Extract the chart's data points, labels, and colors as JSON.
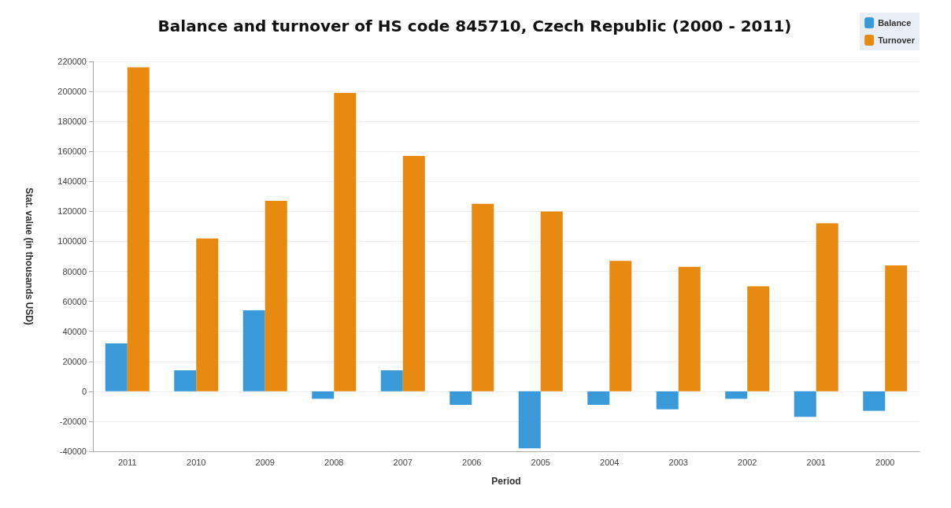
{
  "chart_data": {
    "type": "bar",
    "title": "Balance and turnover of HS code 845710, Czech Republic (2000 - 2011)",
    "xlabel": "Period",
    "ylabel": "Stat. value (in thousands USD)",
    "categories": [
      "2011",
      "2010",
      "2009",
      "2008",
      "2007",
      "2006",
      "2005",
      "2004",
      "2003",
      "2002",
      "2001",
      "2000"
    ],
    "series": [
      {
        "name": "Balance",
        "color": "#3a9ad9",
        "values": [
          32000,
          14000,
          54000,
          -5000,
          14000,
          -9000,
          -38000,
          -9000,
          -12000,
          -5000,
          -17000,
          -13000
        ]
      },
      {
        "name": "Turnover",
        "color": "#e88a10",
        "values": [
          216000,
          102000,
          127000,
          199000,
          157000,
          125000,
          120000,
          87000,
          83000,
          70000,
          112000,
          84000
        ]
      }
    ],
    "ylim": [
      -40000,
      220000
    ],
    "yticks": [
      -40000,
      -20000,
      0,
      20000,
      40000,
      60000,
      80000,
      100000,
      120000,
      140000,
      160000,
      180000,
      200000,
      220000
    ],
    "grid": "y",
    "legend": "top right"
  }
}
